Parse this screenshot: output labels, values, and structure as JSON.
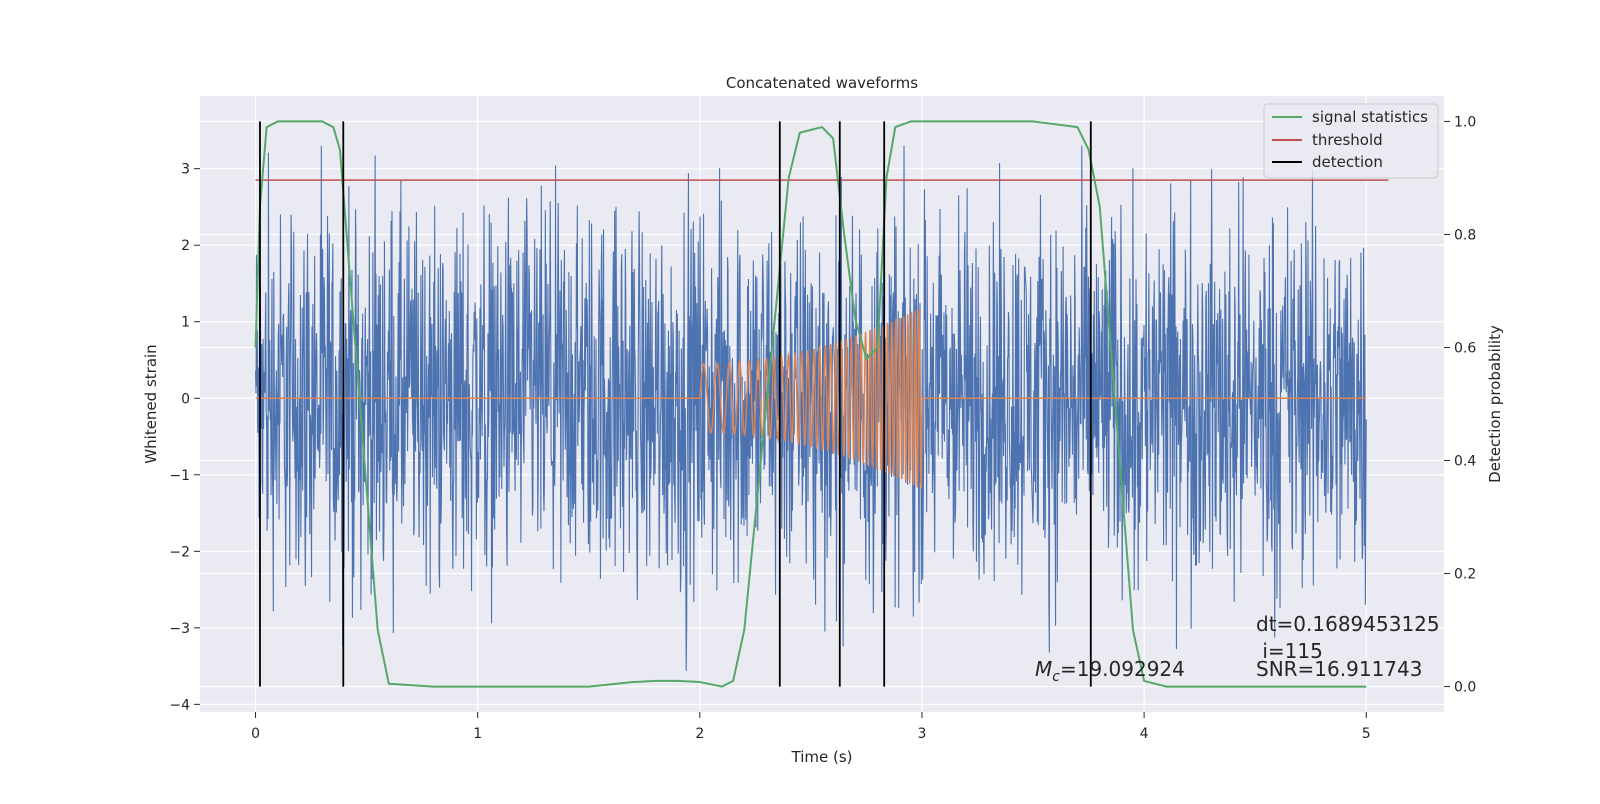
{
  "chart_data": {
    "type": "line",
    "title": "Concatenated waveforms",
    "xlabel": "Time (s)",
    "ylabel_left": "Whitened strain",
    "ylabel_right": "Detection probability",
    "xlim": [
      -0.25,
      5.35
    ],
    "ylim_left": [
      -4.1,
      3.95
    ],
    "ylim_right": [
      -0.045,
      1.045
    ],
    "x_ticks": [
      0,
      1,
      2,
      3,
      4,
      5
    ],
    "x_tick_labels": [
      "0",
      "1",
      "2",
      "3",
      "4",
      "5"
    ],
    "y_left_ticks": [
      -4,
      -3,
      -2,
      -1,
      0,
      1,
      2,
      3
    ],
    "y_left_tick_labels": [
      "−4",
      "−3",
      "−2",
      "−1",
      "0",
      "1",
      "2",
      "3"
    ],
    "y_right_ticks": [
      0.0,
      0.2,
      0.4,
      0.6,
      0.8,
      1.0
    ],
    "y_right_tick_labels": [
      "0.0",
      "0.2",
      "0.4",
      "0.6",
      "0.8",
      "1.0"
    ],
    "grid": true,
    "legend_position": "top-right",
    "legend": [
      {
        "label": "signal statistics",
        "color": "#55a868"
      },
      {
        "label": "threshold",
        "color": "#c44e52"
      },
      {
        "label": "detection",
        "color": "#000000"
      }
    ],
    "colors": {
      "strain": "#4c72b0",
      "waveform": "#dd8452",
      "signal_statistics": "#55a868",
      "threshold": "#c44e52",
      "detection": "#000000",
      "background": "#eaeaf2",
      "grid": "#ffffff"
    },
    "series": [
      {
        "role": "strain",
        "description_x_range": [
          0,
          5
        ],
        "approx_amplitude": 2.2
      },
      {
        "role": "injected-waveform",
        "x_range": [
          2.0,
          3.0
        ],
        "start_amplitude": 0.45,
        "end_amplitude": 1.2,
        "zero_elsewhere": [
          0,
          5
        ]
      },
      {
        "name": "signal statistics",
        "axis": "right",
        "x": [
          0.0,
          0.02,
          0.05,
          0.1,
          0.3,
          0.35,
          0.38,
          0.42,
          0.48,
          0.55,
          0.6,
          0.8,
          1.5,
          1.7,
          1.8,
          1.9,
          2.0,
          2.1,
          2.15,
          2.2,
          2.3,
          2.4,
          2.45,
          2.55,
          2.6,
          2.65,
          2.7,
          2.75,
          2.8,
          2.82,
          2.84,
          2.88,
          2.95,
          3.5,
          3.7,
          3.75,
          3.8,
          3.85,
          3.9,
          3.95,
          4.0,
          4.1,
          5.0
        ],
        "y": [
          0.6,
          0.85,
          0.99,
          1.0,
          1.0,
          0.99,
          0.95,
          0.75,
          0.45,
          0.1,
          0.005,
          0.0,
          0.0,
          0.008,
          0.01,
          0.01,
          0.008,
          0.0,
          0.01,
          0.1,
          0.5,
          0.9,
          0.98,
          0.99,
          0.97,
          0.8,
          0.65,
          0.58,
          0.6,
          0.75,
          0.9,
          0.99,
          1.0,
          1.0,
          0.99,
          0.95,
          0.85,
          0.6,
          0.35,
          0.1,
          0.01,
          0.0,
          0.0
        ]
      },
      {
        "name": "threshold",
        "axis": "left",
        "x": [
          0.0,
          5.1
        ],
        "y": [
          2.85,
          2.85
        ]
      },
      {
        "name": "detection",
        "type": "vlines",
        "x": [
          0.02,
          0.395,
          2.36,
          2.63,
          2.83,
          3.76
        ]
      }
    ],
    "annotations": [
      {
        "id": "mc",
        "prefix": "M",
        "subscript": "c",
        "text": "=19.092924",
        "x": 3.5,
        "y_axis_right": 0.02
      },
      {
        "id": "dt",
        "text": "dt=0.1689453125",
        "x": 4.5,
        "y_axis_right": 0.1
      },
      {
        "id": "i",
        "text": " i=115",
        "x": 4.5,
        "y_axis_right": 0.05
      },
      {
        "id": "snr",
        "text": "SNR=16.911743",
        "x": 4.5,
        "y_axis_right": 0.02
      }
    ]
  }
}
